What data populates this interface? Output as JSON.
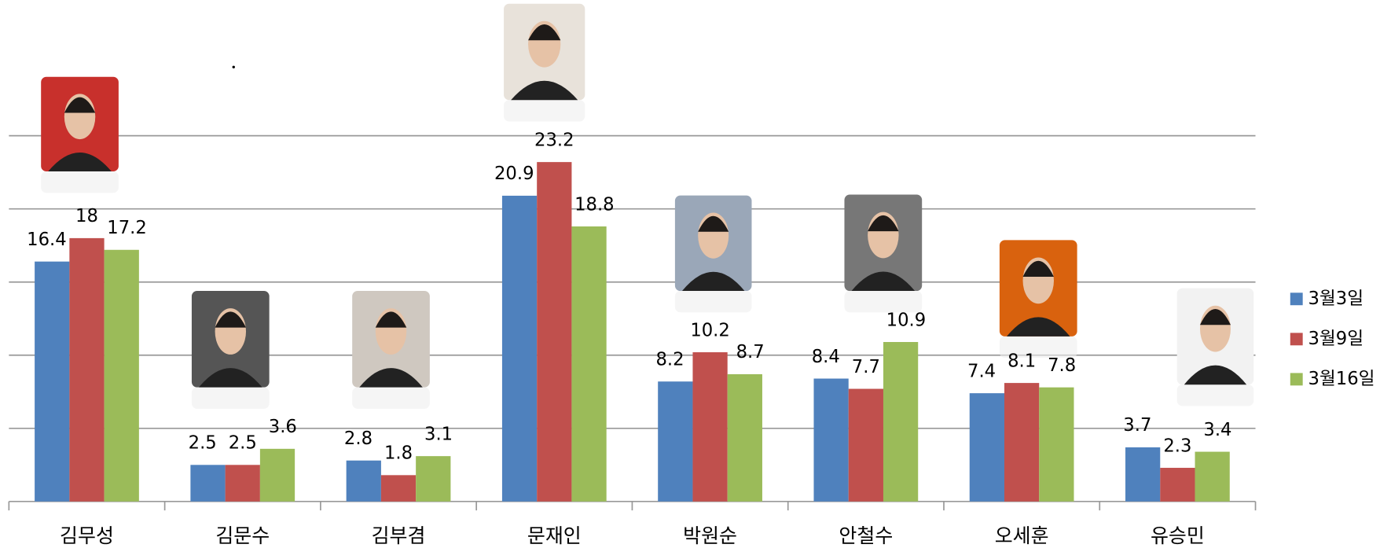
{
  "chart_data": {
    "type": "bar",
    "categories": [
      "김무성",
      "김문수",
      "김부겸",
      "문재인",
      "박원순",
      "안철수",
      "오세훈",
      "유승민"
    ],
    "series": [
      {
        "name": "3월3일",
        "color": "#4f81bd",
        "values": [
          16.4,
          2.5,
          2.8,
          20.9,
          8.2,
          8.4,
          7.4,
          3.7
        ]
      },
      {
        "name": "3월9일",
        "color": "#c0504d",
        "values": [
          18,
          2.5,
          1.8,
          23.2,
          10.2,
          7.7,
          8.1,
          2.3
        ]
      },
      {
        "name": "3월16일",
        "color": "#9bbb59",
        "values": [
          17.2,
          3.6,
          3.1,
          18.8,
          8.7,
          10.9,
          7.8,
          3.4
        ]
      }
    ],
    "ylim": [
      0,
      25
    ],
    "yticks": [
      0,
      5,
      10,
      15,
      20,
      25
    ],
    "grid": true,
    "legend": "right"
  }
}
